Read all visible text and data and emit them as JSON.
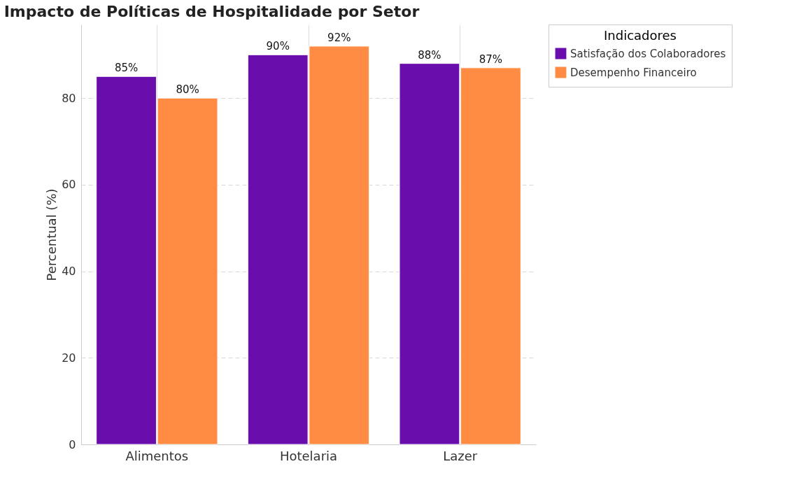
{
  "chart_data": {
    "type": "bar",
    "title": "Impacto de Políticas de Hospitalidade por Setor",
    "ylabel": "Percentual (%)",
    "legend_title": "Indicadores",
    "categories": [
      "Alimentos",
      "Hotelaria",
      "Lazer"
    ],
    "series": [
      {
        "name": "Satisfação dos Colaboradores",
        "color": "#6a0dad",
        "values": [
          85,
          90,
          88
        ],
        "value_labels": [
          "85%",
          "90%",
          "88%"
        ]
      },
      {
        "name": "Desempenho Financeiro",
        "color": "#ff8c42",
        "values": [
          80,
          92,
          87
        ],
        "value_labels": [
          "80%",
          "92%",
          "87%"
        ]
      }
    ],
    "ylim": [
      0,
      97
    ],
    "yticks": [
      0,
      20,
      40,
      60,
      80
    ],
    "grid": true,
    "legend": "top right"
  }
}
